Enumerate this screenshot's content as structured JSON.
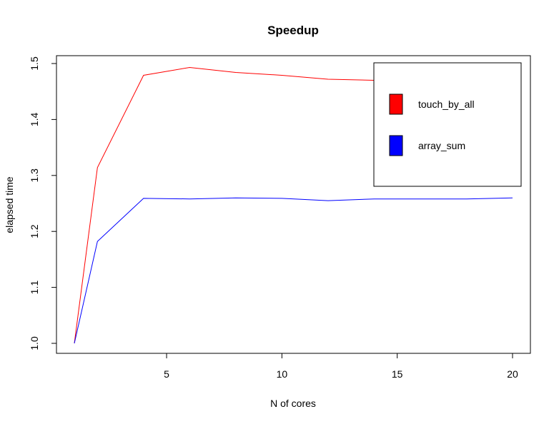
{
  "chart_data": {
    "type": "line",
    "title": "Speedup",
    "xlabel": "N of cores",
    "ylabel": "elapsed time",
    "xlim": [
      1,
      20
    ],
    "ylim": [
      1.0,
      1.5
    ],
    "x_ticks": [
      5,
      10,
      15,
      20
    ],
    "y_ticks": [
      1.0,
      1.1,
      1.2,
      1.3,
      1.4,
      1.5
    ],
    "legend_position": "top-right",
    "grid": false,
    "series": [
      {
        "name": "touch_by_all",
        "color": "#ff0000",
        "x": [
          1,
          2,
          4,
          6,
          8,
          10,
          12,
          14,
          16,
          18,
          20
        ],
        "y": [
          1.0,
          1.314,
          1.479,
          1.493,
          1.484,
          1.479,
          1.472,
          1.47,
          1.469,
          1.468,
          1.467
        ]
      },
      {
        "name": "array_sum",
        "color": "#0000ff",
        "x": [
          1,
          2,
          4,
          6,
          8,
          10,
          12,
          14,
          16,
          18,
          20
        ],
        "y": [
          1.0,
          1.182,
          1.259,
          1.258,
          1.26,
          1.259,
          1.255,
          1.258,
          1.258,
          1.258,
          1.26
        ]
      }
    ]
  }
}
